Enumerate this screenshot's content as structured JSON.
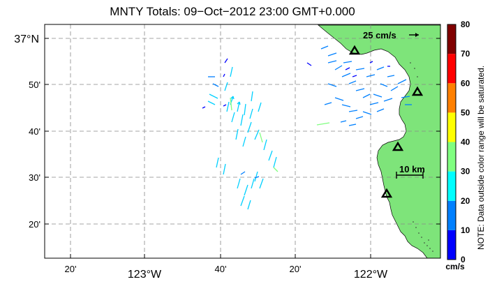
{
  "title": "MNTY Totals: 09−Oct−2012 23:00 GMT+0.000",
  "lat_labels": [
    {
      "id": "lat-37",
      "label": "37°N",
      "lat": 37.0
    },
    {
      "id": "lat-50",
      "label": "50'",
      "lat": 36.833
    },
    {
      "id": "lat-40",
      "label": "40'",
      "lat": 36.667
    },
    {
      "id": "lat-30",
      "label": "30'",
      "lat": 36.5
    },
    {
      "id": "lat-20",
      "label": "20'",
      "lat": 36.333
    }
  ],
  "lon_labels": [
    {
      "id": "lon-20a",
      "label": "20'",
      "lon": -123.333
    },
    {
      "id": "lon-123",
      "label": "123°W",
      "lon": -123.0
    },
    {
      "id": "lon-40",
      "label": "40'",
      "lon": -122.667
    },
    {
      "id": "lon-20b",
      "label": "20'",
      "lon": -122.333
    },
    {
      "id": "lon-122",
      "label": "122°W",
      "lon": -122.0
    }
  ],
  "scale": {
    "velocity_label": "25 cm/s",
    "distance_label": "10 km"
  },
  "colorbar": {
    "ticks": [
      "0",
      "10",
      "20",
      "30",
      "40",
      "50",
      "60",
      "70",
      "80"
    ],
    "colors": [
      "#0000ff",
      "#0080ff",
      "#00ffff",
      "#80ff80",
      "#ffff00",
      "#ff8000",
      "#ff0000",
      "#800000"
    ],
    "unit": "cm/s",
    "note": "NOTE: Data outside color range will be saturated."
  },
  "colors": {
    "land": "#7ee47a",
    "grid": "#888888"
  },
  "stations": [
    "station-1",
    "station-2",
    "station-3",
    "station-4"
  ]
}
